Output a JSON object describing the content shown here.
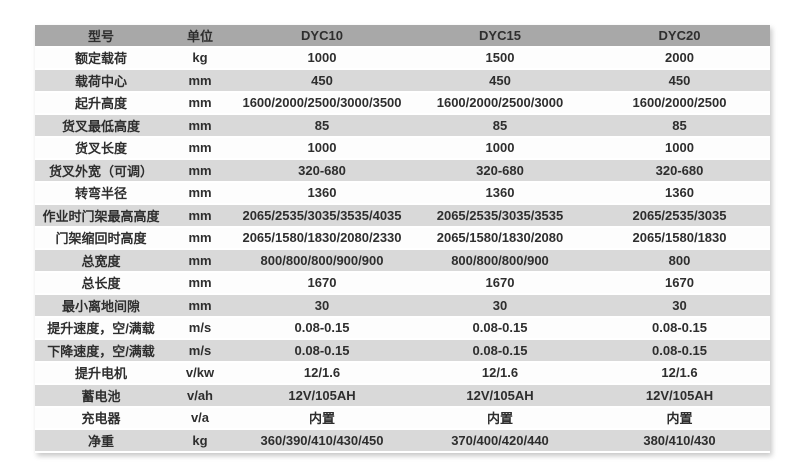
{
  "colors": {
    "header_bg": "#a8a8a8",
    "row_alt_bg": "#d9d9d9",
    "row_bg": "#fdfdfd",
    "text": "#2e2e2e",
    "page_bg": "#ffffff"
  },
  "chart_data": {
    "type": "table",
    "columns": [
      "型号",
      "单位",
      "DYC10",
      "DYC15",
      "DYC20"
    ],
    "rows": [
      {
        "label": "额定载荷",
        "unit": "kg",
        "values": [
          "1000",
          "1500",
          "2000"
        ]
      },
      {
        "label": "载荷中心",
        "unit": "mm",
        "values": [
          "450",
          "450",
          "450"
        ]
      },
      {
        "label": "起升高度",
        "unit": "mm",
        "values": [
          "1600/2000/2500/3000/3500",
          "1600/2000/2500/3000",
          "1600/2000/2500"
        ]
      },
      {
        "label": "货叉最低高度",
        "unit": "mm",
        "values": [
          "85",
          "85",
          "85"
        ]
      },
      {
        "label": "货叉长度",
        "unit": "mm",
        "values": [
          "1000",
          "1000",
          "1000"
        ]
      },
      {
        "label": "货叉外宽（可调）",
        "unit": "mm",
        "values": [
          "320-680",
          "320-680",
          "320-680"
        ]
      },
      {
        "label": "转弯半径",
        "unit": "mm",
        "values": [
          "1360",
          "1360",
          "1360"
        ]
      },
      {
        "label": "作业时门架最高高度",
        "unit": "mm",
        "values": [
          "2065/2535/3035/3535/4035",
          "2065/2535/3035/3535",
          "2065/2535/3035"
        ]
      },
      {
        "label": "门架缩回时高度",
        "unit": "mm",
        "values": [
          "2065/1580/1830/2080/2330",
          "2065/1580/1830/2080",
          "2065/1580/1830"
        ]
      },
      {
        "label": "总宽度",
        "unit": "mm",
        "values": [
          "800/800/800/900/900",
          "800/800/800/900",
          "800"
        ]
      },
      {
        "label": "总长度",
        "unit": "mm",
        "values": [
          "1670",
          "1670",
          "1670"
        ]
      },
      {
        "label": "最小离地间隙",
        "unit": "mm",
        "values": [
          "30",
          "30",
          "30"
        ]
      },
      {
        "label": "提升速度，空/满载",
        "unit": "m/s",
        "values": [
          "0.08-0.15",
          "0.08-0.15",
          "0.08-0.15"
        ]
      },
      {
        "label": "下降速度，空/满载",
        "unit": "m/s",
        "values": [
          "0.08-0.15",
          "0.08-0.15",
          "0.08-0.15"
        ]
      },
      {
        "label": "提升电机",
        "unit": "v/kw",
        "values": [
          "12/1.6",
          "12/1.6",
          "12/1.6"
        ]
      },
      {
        "label": "蓄电池",
        "unit": "v/ah",
        "values": [
          "12V/105AH",
          "12V/105AH",
          "12V/105AH"
        ]
      },
      {
        "label": "充电器",
        "unit": "v/a",
        "values": [
          "内置",
          "内置",
          "内置"
        ]
      },
      {
        "label": "净重",
        "unit": "kg",
        "values": [
          "360/390/410/430/450",
          "370/400/420/440",
          "380/410/430"
        ]
      }
    ]
  }
}
